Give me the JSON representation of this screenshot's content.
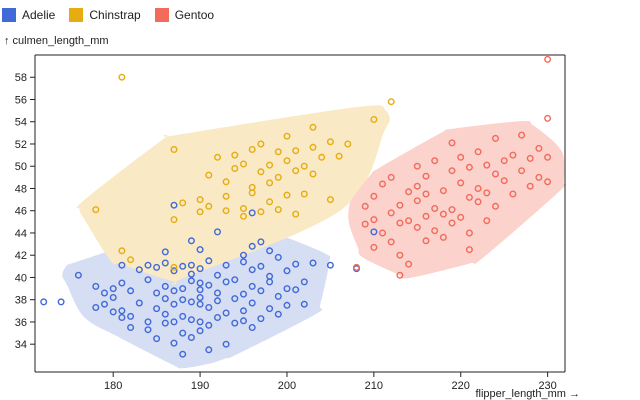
{
  "chart_data": {
    "type": "scatter",
    "title": "",
    "xlabel": "flipper_length_mm →",
    "ylabel": "↑ culmen_length_mm",
    "xlim": [
      171,
      232
    ],
    "ylim": [
      31.5,
      60
    ],
    "x_ticks": [
      180,
      190,
      200,
      210,
      220,
      230
    ],
    "y_ticks": [
      34,
      36,
      38,
      40,
      42,
      44,
      46,
      48,
      50,
      52,
      54,
      56,
      58
    ],
    "grid": false,
    "legend_position": "top-left",
    "series": [
      {
        "name": "Adelie",
        "color": "#4169d8",
        "fill": "#d6def4",
        "points": [
          [
            172,
            37.8
          ],
          [
            174,
            37.8
          ],
          [
            176,
            40.2
          ],
          [
            178,
            39.2
          ],
          [
            178,
            37.3
          ],
          [
            179,
            38.6
          ],
          [
            179,
            37.6
          ],
          [
            180,
            39.0
          ],
          [
            180,
            36.9
          ],
          [
            180,
            38.2
          ],
          [
            181,
            39.5
          ],
          [
            181,
            36.4
          ],
          [
            181,
            41.1
          ],
          [
            181,
            37.0
          ],
          [
            182,
            36.5
          ],
          [
            182,
            38.8
          ],
          [
            182,
            35.5
          ],
          [
            183,
            37.7
          ],
          [
            183,
            40.7
          ],
          [
            184,
            39.8
          ],
          [
            184,
            41.1
          ],
          [
            184,
            36.0
          ],
          [
            184,
            35.3
          ],
          [
            185,
            38.6
          ],
          [
            185,
            40.9
          ],
          [
            185,
            37.2
          ],
          [
            185,
            34.5
          ],
          [
            186,
            36.7
          ],
          [
            186,
            38.1
          ],
          [
            186,
            39.2
          ],
          [
            186,
            41.3
          ],
          [
            186,
            35.9
          ],
          [
            187,
            37.6
          ],
          [
            187,
            36.0
          ],
          [
            187,
            40.6
          ],
          [
            187,
            38.8
          ],
          [
            187,
            34.1
          ],
          [
            188,
            39.0
          ],
          [
            188,
            41.0
          ],
          [
            188,
            36.5
          ],
          [
            188,
            35.0
          ],
          [
            188,
            38.0
          ],
          [
            188,
            33.1
          ],
          [
            189,
            37.8
          ],
          [
            189,
            39.7
          ],
          [
            189,
            40.3
          ],
          [
            189,
            36.2
          ],
          [
            189,
            34.6
          ],
          [
            189,
            41.1
          ],
          [
            190,
            38.2
          ],
          [
            190,
            39.5
          ],
          [
            190,
            37.6
          ],
          [
            190,
            36.0
          ],
          [
            190,
            40.8
          ],
          [
            190,
            35.2
          ],
          [
            190,
            42.5
          ],
          [
            190,
            38.9
          ],
          [
            191,
            39.3
          ],
          [
            191,
            37.3
          ],
          [
            191,
            41.5
          ],
          [
            191,
            35.7
          ],
          [
            191,
            33.5
          ],
          [
            192,
            38.6
          ],
          [
            192,
            40.2
          ],
          [
            192,
            36.4
          ],
          [
            192,
            37.9
          ],
          [
            193,
            41.1
          ],
          [
            193,
            39.6
          ],
          [
            193,
            36.8
          ],
          [
            193,
            34.0
          ],
          [
            194,
            38.1
          ],
          [
            194,
            35.9
          ],
          [
            194,
            39.8
          ],
          [
            195,
            41.4
          ],
          [
            195,
            38.5
          ],
          [
            195,
            37.0
          ],
          [
            195,
            42.0
          ],
          [
            195,
            36.1
          ],
          [
            196,
            39.2
          ],
          [
            196,
            40.7
          ],
          [
            196,
            37.7
          ],
          [
            196,
            35.5
          ],
          [
            196,
            42.8
          ],
          [
            197,
            38.8
          ],
          [
            197,
            41.0
          ],
          [
            197,
            36.3
          ],
          [
            197,
            43.2
          ],
          [
            198,
            39.6
          ],
          [
            198,
            37.2
          ],
          [
            198,
            40.1
          ],
          [
            198,
            42.4
          ],
          [
            199,
            38.3
          ],
          [
            199,
            36.7
          ],
          [
            199,
            41.8
          ],
          [
            200,
            39.0
          ],
          [
            200,
            37.5
          ],
          [
            200,
            40.6
          ],
          [
            201,
            38.9
          ],
          [
            201,
            41.2
          ],
          [
            202,
            37.6
          ],
          [
            202,
            39.6
          ],
          [
            203,
            41.3
          ],
          [
            205,
            41.1
          ],
          [
            186,
            42.3
          ],
          [
            187,
            46.5
          ],
          [
            189,
            43.3
          ],
          [
            192,
            44.1
          ],
          [
            196,
            45.8
          ],
          [
            208,
            40.8
          ],
          [
            210,
            44.1
          ]
        ]
      },
      {
        "name": "Chinstrap",
        "color": "#e6ad12",
        "fill": "#f9e9c4",
        "points": [
          [
            178,
            46.1
          ],
          [
            181,
            58.0
          ],
          [
            187,
            51.5
          ],
          [
            187,
            45.2
          ],
          [
            188,
            46.7
          ],
          [
            190,
            45.9
          ],
          [
            190,
            47.0
          ],
          [
            191,
            49.2
          ],
          [
            191,
            46.4
          ],
          [
            192,
            50.8
          ],
          [
            193,
            47.3
          ],
          [
            193,
            46.0
          ],
          [
            193,
            48.6
          ],
          [
            194,
            51.0
          ],
          [
            194,
            49.8
          ],
          [
            195,
            45.5
          ],
          [
            195,
            46.2
          ],
          [
            195,
            50.2
          ],
          [
            196,
            48.1
          ],
          [
            196,
            51.5
          ],
          [
            196,
            47.6
          ],
          [
            197,
            49.5
          ],
          [
            197,
            45.9
          ],
          [
            197,
            52.0
          ],
          [
            198,
            50.1
          ],
          [
            198,
            46.8
          ],
          [
            198,
            48.5
          ],
          [
            199,
            51.3
          ],
          [
            199,
            49.0
          ],
          [
            199,
            46.1
          ],
          [
            200,
            50.5
          ],
          [
            200,
            47.4
          ],
          [
            200,
            52.7
          ],
          [
            201,
            49.6
          ],
          [
            201,
            45.7
          ],
          [
            201,
            51.4
          ],
          [
            202,
            50.0
          ],
          [
            202,
            47.5
          ],
          [
            203,
            51.7
          ],
          [
            203,
            49.3
          ],
          [
            203,
            53.5
          ],
          [
            204,
            50.8
          ],
          [
            205,
            52.2
          ],
          [
            205,
            47.0
          ],
          [
            206,
            50.9
          ],
          [
            207,
            52.0
          ],
          [
            210,
            54.2
          ],
          [
            212,
            55.8
          ],
          [
            181,
            42.4
          ],
          [
            187,
            40.9
          ],
          [
            182,
            41.6
          ]
        ]
      },
      {
        "name": "Gentoo",
        "color": "#f26b5b",
        "fill": "#fbd2cc",
        "points": [
          [
            208,
            40.9
          ],
          [
            209,
            44.8
          ],
          [
            209,
            46.4
          ],
          [
            210,
            45.2
          ],
          [
            210,
            42.7
          ],
          [
            210,
            47.3
          ],
          [
            211,
            44.0
          ],
          [
            211,
            48.4
          ],
          [
            212,
            45.8
          ],
          [
            212,
            43.2
          ],
          [
            212,
            49.0
          ],
          [
            213,
            46.5
          ],
          [
            213,
            42.0
          ],
          [
            213,
            44.9
          ],
          [
            214,
            47.7
          ],
          [
            214,
            45.1
          ],
          [
            214,
            41.2
          ],
          [
            215,
            48.2
          ],
          [
            215,
            44.5
          ],
          [
            215,
            46.9
          ],
          [
            215,
            50.0
          ],
          [
            216,
            45.5
          ],
          [
            216,
            43.3
          ],
          [
            216,
            47.5
          ],
          [
            216,
            49.1
          ],
          [
            217,
            46.2
          ],
          [
            217,
            44.2
          ],
          [
            217,
            50.5
          ],
          [
            218,
            45.7
          ],
          [
            218,
            47.8
          ],
          [
            218,
            43.6
          ],
          [
            219,
            49.6
          ],
          [
            219,
            46.1
          ],
          [
            219,
            44.9
          ],
          [
            219,
            52.1
          ],
          [
            220,
            48.5
          ],
          [
            220,
            45.4
          ],
          [
            220,
            50.8
          ],
          [
            221,
            47.2
          ],
          [
            221,
            44.0
          ],
          [
            221,
            49.9
          ],
          [
            222,
            46.8
          ],
          [
            222,
            51.3
          ],
          [
            222,
            48.0
          ],
          [
            223,
            45.1
          ],
          [
            223,
            50.1
          ],
          [
            223,
            47.6
          ],
          [
            224,
            49.3
          ],
          [
            224,
            52.5
          ],
          [
            224,
            46.4
          ],
          [
            225,
            48.7
          ],
          [
            225,
            50.5
          ],
          [
            226,
            47.5
          ],
          [
            226,
            51.0
          ],
          [
            227,
            49.6
          ],
          [
            227,
            52.8
          ],
          [
            228,
            48.2
          ],
          [
            228,
            50.7
          ],
          [
            229,
            49.0
          ],
          [
            229,
            51.6
          ],
          [
            230,
            48.6
          ],
          [
            230,
            50.8
          ],
          [
            230,
            54.3
          ],
          [
            230,
            59.6
          ],
          [
            221,
            42.5
          ],
          [
            213,
            40.2
          ]
        ]
      }
    ]
  }
}
